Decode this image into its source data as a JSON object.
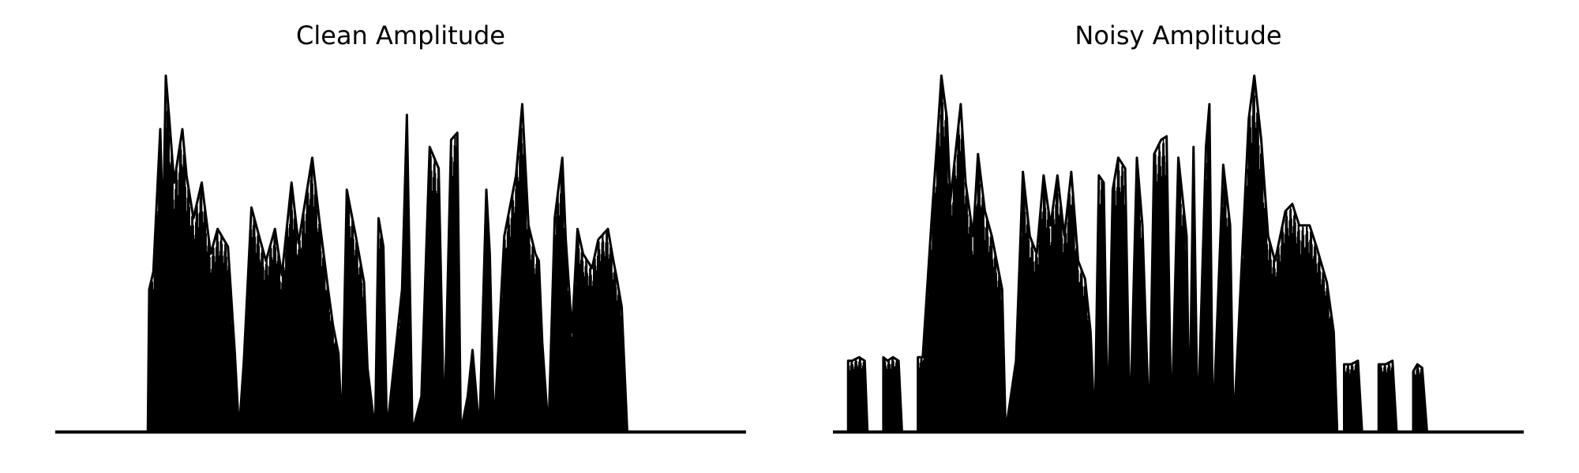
{
  "figure": {
    "background": "#ffffff",
    "line_color": "#000000"
  },
  "chart_data": [
    {
      "type": "line",
      "title": "Clean Amplitude",
      "axes_visible": false,
      "grid": false,
      "ylim": [
        0,
        1.0
      ],
      "xlim": [
        0,
        100
      ],
      "envelope": [
        [
          13.4,
          0.0
        ],
        [
          13.6,
          0.4
        ],
        [
          14.2,
          0.45
        ],
        [
          15.2,
          0.85
        ],
        [
          15.6,
          0.55
        ],
        [
          16.0,
          1.0
        ],
        [
          16.5,
          0.88
        ],
        [
          17.2,
          0.7
        ],
        [
          18.4,
          0.85
        ],
        [
          19.0,
          0.72
        ],
        [
          20.0,
          0.6
        ],
        [
          21.2,
          0.7
        ],
        [
          22.5,
          0.5
        ],
        [
          23.5,
          0.57
        ],
        [
          25.0,
          0.52
        ],
        [
          26.0,
          0.22
        ],
        [
          26.6,
          0.0
        ],
        [
          27.3,
          0.2
        ],
        [
          28.4,
          0.63
        ],
        [
          29.5,
          0.55
        ],
        [
          30.5,
          0.48
        ],
        [
          31.8,
          0.57
        ],
        [
          32.8,
          0.44
        ],
        [
          34.2,
          0.7
        ],
        [
          35.2,
          0.53
        ],
        [
          37.2,
          0.77
        ],
        [
          38.2,
          0.6
        ],
        [
          39.5,
          0.4
        ],
        [
          40.2,
          0.3
        ],
        [
          41.0,
          0.22
        ],
        [
          41.5,
          0.0
        ],
        [
          42.2,
          0.68
        ],
        [
          43.5,
          0.55
        ],
        [
          44.7,
          0.42
        ],
        [
          45.2,
          0.18
        ],
        [
          46.3,
          0.0
        ],
        [
          46.8,
          0.6
        ],
        [
          47.5,
          0.52
        ],
        [
          48.0,
          0.0
        ],
        [
          50.2,
          0.4
        ],
        [
          50.9,
          0.89
        ],
        [
          51.7,
          0.0
        ],
        [
          53.0,
          0.1
        ],
        [
          54.2,
          0.8
        ],
        [
          55.5,
          0.74
        ],
        [
          56.3,
          0.0
        ],
        [
          57.3,
          0.82
        ],
        [
          58.2,
          0.84
        ],
        [
          58.7,
          0.0
        ],
        [
          59.7,
          0.1
        ],
        [
          60.4,
          0.23
        ],
        [
          61.4,
          0.0
        ],
        [
          62.4,
          0.68
        ],
        [
          62.9,
          0.5
        ],
        [
          63.5,
          0.0
        ],
        [
          65.0,
          0.55
        ],
        [
          66.7,
          0.72
        ],
        [
          67.6,
          0.92
        ],
        [
          68.5,
          0.58
        ],
        [
          69.5,
          0.5
        ],
        [
          70.0,
          0.48
        ],
        [
          70.5,
          0.25
        ],
        [
          71.4,
          0.0
        ],
        [
          72.3,
          0.6
        ],
        [
          73.4,
          0.77
        ],
        [
          73.9,
          0.54
        ],
        [
          74.8,
          0.28
        ],
        [
          75.6,
          0.57
        ],
        [
          76.4,
          0.5
        ],
        [
          77.7,
          0.46
        ],
        [
          78.6,
          0.54
        ],
        [
          80.0,
          0.57
        ],
        [
          80.8,
          0.48
        ],
        [
          81.3,
          0.43
        ],
        [
          82.0,
          0.35
        ],
        [
          82.8,
          0.0
        ]
      ]
    },
    {
      "type": "line",
      "title": "Noisy Amplitude",
      "axes_visible": false,
      "grid": false,
      "ylim": [
        0,
        1.0
      ],
      "xlim": [
        0,
        100
      ],
      "envelope": [
        [
          2.2,
          0.0
        ],
        [
          2.2,
          0.2
        ],
        [
          2.8,
          0.2
        ],
        [
          3.8,
          0.21
        ],
        [
          4.6,
          0.2
        ],
        [
          5.0,
          0.0
        ],
        [
          7.3,
          0.0
        ],
        [
          7.3,
          0.21
        ],
        [
          7.9,
          0.2
        ],
        [
          8.7,
          0.21
        ],
        [
          9.5,
          0.2
        ],
        [
          10.0,
          0.0
        ],
        [
          12.3,
          0.0
        ],
        [
          12.3,
          0.21
        ],
        [
          13.0,
          0.21
        ],
        [
          14.3,
          0.6
        ],
        [
          15.2,
          0.85
        ],
        [
          15.7,
          1.0
        ],
        [
          16.5,
          0.88
        ],
        [
          17.0,
          0.65
        ],
        [
          18.5,
          0.92
        ],
        [
          19.2,
          0.7
        ],
        [
          20.3,
          0.55
        ],
        [
          21.0,
          0.78
        ],
        [
          22.0,
          0.62
        ],
        [
          23.0,
          0.55
        ],
        [
          24.5,
          0.4
        ],
        [
          25.0,
          0.0
        ],
        [
          26.5,
          0.2
        ],
        [
          27.5,
          0.73
        ],
        [
          28.5,
          0.55
        ],
        [
          29.5,
          0.5
        ],
        [
          30.5,
          0.72
        ],
        [
          31.5,
          0.58
        ],
        [
          32.5,
          0.72
        ],
        [
          33.5,
          0.55
        ],
        [
          34.5,
          0.73
        ],
        [
          35.5,
          0.48
        ],
        [
          36.5,
          0.43
        ],
        [
          37.3,
          0.28
        ],
        [
          37.9,
          0.0
        ],
        [
          38.5,
          0.72
        ],
        [
          39.2,
          0.7
        ],
        [
          39.8,
          0.0
        ],
        [
          40.5,
          0.68
        ],
        [
          41.3,
          0.77
        ],
        [
          42.3,
          0.74
        ],
        [
          43.0,
          0.0
        ],
        [
          44.0,
          0.77
        ],
        [
          44.8,
          0.58
        ],
        [
          45.8,
          0.0
        ],
        [
          46.5,
          0.78
        ],
        [
          47.5,
          0.82
        ],
        [
          48.3,
          0.83
        ],
        [
          49.0,
          0.0
        ],
        [
          50.0,
          0.77
        ],
        [
          51.2,
          0.55
        ],
        [
          51.6,
          0.0
        ],
        [
          52.2,
          0.8
        ],
        [
          52.8,
          0.0
        ],
        [
          54.0,
          0.8
        ],
        [
          54.5,
          0.92
        ],
        [
          55.0,
          0.0
        ],
        [
          56.5,
          0.75
        ],
        [
          57.5,
          0.58
        ],
        [
          58.0,
          0.0
        ],
        [
          59.5,
          0.6
        ],
        [
          60.2,
          0.88
        ],
        [
          61.0,
          1.0
        ],
        [
          62.0,
          0.82
        ],
        [
          63.0,
          0.55
        ],
        [
          64.0,
          0.48
        ],
        [
          65.5,
          0.62
        ],
        [
          66.5,
          0.64
        ],
        [
          67.5,
          0.58
        ],
        [
          69.0,
          0.58
        ],
        [
          70.0,
          0.52
        ],
        [
          71.5,
          0.42
        ],
        [
          72.5,
          0.28
        ],
        [
          73.0,
          0.0
        ],
        [
          74.0,
          0.0
        ],
        [
          74.0,
          0.19
        ],
        [
          75.0,
          0.19
        ],
        [
          76.0,
          0.2
        ],
        [
          76.6,
          0.0
        ],
        [
          79.0,
          0.0
        ],
        [
          79.0,
          0.19
        ],
        [
          80.0,
          0.19
        ],
        [
          81.0,
          0.2
        ],
        [
          81.6,
          0.0
        ],
        [
          84.0,
          0.0
        ],
        [
          84.0,
          0.17
        ],
        [
          84.6,
          0.19
        ],
        [
          85.3,
          0.18
        ],
        [
          86.0,
          0.0
        ]
      ]
    }
  ]
}
